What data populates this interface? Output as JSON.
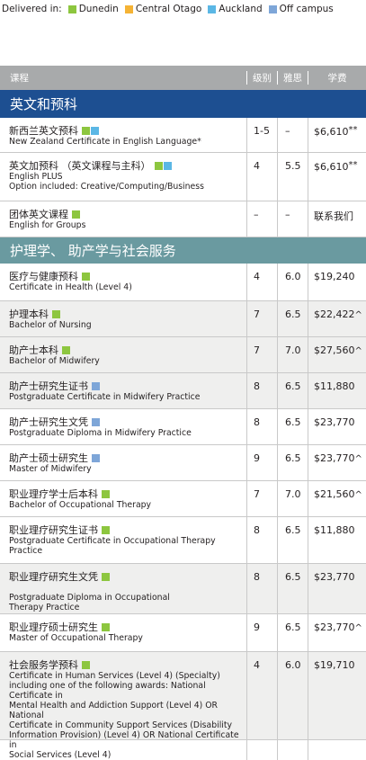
{
  "legend": {
    "label": "Delivered in:",
    "items": [
      {
        "name": "Dunedin",
        "color": "#8dc63f"
      },
      {
        "name": "Central Otago",
        "color": "#f5b335"
      },
      {
        "name": "Auckland",
        "color": "#5bb7e5"
      },
      {
        "name": "Off campus",
        "color": "#7ea6d8"
      }
    ]
  },
  "header": {
    "program": "课程",
    "level": "级别",
    "ielts": "雅思",
    "fee": "学费"
  },
  "sections": [
    {
      "title": "英文和预科",
      "color": "#1d4f91",
      "rows": [
        {
          "cn": "新西兰英文预科",
          "en": [
            "New Zealand Certificate in English Language*"
          ],
          "locations": [
            "Dunedin",
            "Auckland"
          ],
          "level": "1-5",
          "ielts": "–",
          "fee": "$6,610",
          "fee_suffix": "**",
          "height": 39,
          "bg": "w"
        },
        {
          "cn": "英文加预科 （英文课程与主科）",
          "en": [
            "English PLUS",
            "Option included: Creative/Computing/Business"
          ],
          "locations": [
            "Dunedin",
            "Auckland"
          ],
          "level": "4",
          "ielts": "5.5",
          "fee": "$6,610",
          "fee_suffix": "**",
          "height": 54,
          "bg": "w"
        },
        {
          "cn": "团体英文课程",
          "en": [
            "English for Groups"
          ],
          "locations": [
            "Dunedin"
          ],
          "level": "–",
          "ielts": "–",
          "fee": "联系我们",
          "fee_suffix": "",
          "height": 40,
          "bg": "w"
        }
      ]
    },
    {
      "title": "护理学、 助产学与社会服务",
      "color": "#6a9aa0",
      "rows": [
        {
          "cn": "医疗与健康预科",
          "en": [
            "Certificate in Health (Level 4)"
          ],
          "locations": [
            "Dunedin"
          ],
          "level": "4",
          "ielts": "6.0",
          "fee": "$19,240",
          "fee_suffix": "",
          "height": 42,
          "bg": "w"
        },
        {
          "cn": "护理本科",
          "en": [
            "Bachelor of Nursing"
          ],
          "locations": [
            "Dunedin"
          ],
          "level": "7",
          "ielts": "6.5",
          "fee": "$22,422",
          "fee_suffix": "^",
          "height": 40,
          "bg": "g"
        },
        {
          "cn": "助产士本科",
          "en": [
            "Bachelor of Midwifery"
          ],
          "locations": [
            "Dunedin"
          ],
          "level": "7",
          "ielts": "7.0",
          "fee": "$27,560",
          "fee_suffix": "^",
          "height": 40,
          "bg": "g"
        },
        {
          "cn": "助产士研究生证书",
          "en": [
            "Postgraduate Certificate in Midwifery Practice"
          ],
          "locations": [
            "Off campus"
          ],
          "level": "8",
          "ielts": "6.5",
          "fee": "$11,880",
          "fee_suffix": "",
          "height": 40,
          "bg": "g"
        },
        {
          "cn": "助产士研究生文凭",
          "en": [
            "Postgraduate Diploma in Midwifery Practice"
          ],
          "locations": [
            "Off campus"
          ],
          "level": "8",
          "ielts": "6.5",
          "fee": "$23,770",
          "fee_suffix": "",
          "height": 40,
          "bg": "w"
        },
        {
          "cn": "助产士硕士研究生",
          "en": [
            "Master of Midwifery"
          ],
          "locations": [
            "Off campus"
          ],
          "level": "9",
          "ielts": "6.5",
          "fee": "$23,770",
          "fee_suffix": "^",
          "height": 40,
          "bg": "w"
        },
        {
          "cn": "职业理疗学士后本科",
          "en": [
            "Bachelor of Occupational Therapy"
          ],
          "locations": [
            "Dunedin"
          ],
          "level": "7",
          "ielts": "7.0",
          "fee": "$21,560",
          "fee_suffix": "^",
          "height": 40,
          "bg": "w"
        },
        {
          "cn": "职业理疗研究生证书",
          "en": [
            "Postgraduate Certificate in Occupational Therapy",
            "Practice"
          ],
          "locations": [
            "Dunedin"
          ],
          "level": "8",
          "ielts": "6.5",
          "fee": "$11,880",
          "fee_suffix": "",
          "height": 52,
          "bg": "w"
        },
        {
          "cn": "职业理疗研究生文凭",
          "en": [
            "",
            "Postgraduate Diploma in Occupational",
            "Therapy Practice"
          ],
          "locations": [
            "Dunedin"
          ],
          "level": "8",
          "ielts": "6.5",
          "fee": "$23,770",
          "fee_suffix": "",
          "height": 56,
          "bg": "g"
        },
        {
          "cn": "职业理疗硕士研究生",
          "en": [
            "Master of Occupational Therapy"
          ],
          "locations": [
            "Dunedin"
          ],
          "level": "9",
          "ielts": "6.5",
          "fee": "$23,770",
          "fee_suffix": "^",
          "height": 42,
          "bg": "w"
        },
        {
          "cn": "社会服务学预科",
          "en": [
            "Certificate in Human Services (Level 4) (Specialty)",
            "including one of the following awards: National Certificate in",
            "Mental Health and Addiction Support (Level 4) OR National",
            "Certificate in Community Support Services (Disability",
            "Information Provision) (Level 4) OR National Certificate in",
            "Social Services (Level 4)"
          ],
          "locations": [
            "Dunedin"
          ],
          "level": "4",
          "ielts": "6.0",
          "fee": "$19,710",
          "fee_suffix": "",
          "height": 98,
          "bg": "g"
        }
      ]
    }
  ]
}
